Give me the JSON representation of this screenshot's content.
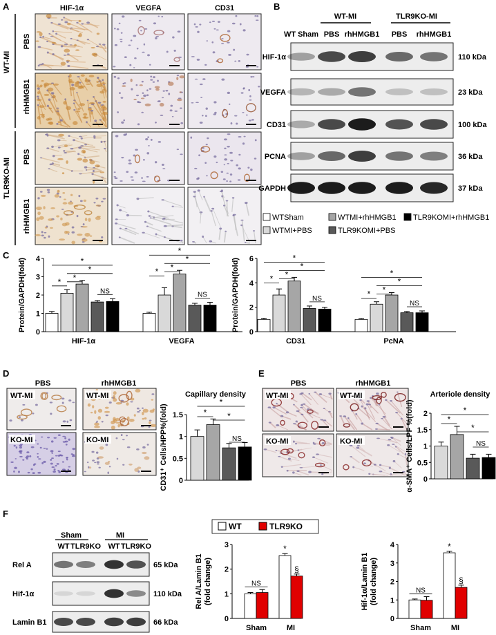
{
  "panels": {
    "A": "A",
    "B": "B",
    "C": "C",
    "D": "D",
    "E": "E",
    "F": "F"
  },
  "colors": {
    "white": "#ffffff",
    "light_gray": "#d9d9d9",
    "mid_gray": "#a6a6a6",
    "dark_gray": "#595959",
    "black": "#000000",
    "red": "#e00000",
    "ihc_bg": "#ece6e6",
    "blot_bg": "#ededed"
  },
  "panelA": {
    "columns": [
      "HIF-1α",
      "VEGFA",
      "CD31"
    ],
    "group_wt": "WT-MI",
    "group_ko": "TLR9KO-MI",
    "rows": [
      "PBS",
      "rhHMGB1",
      "PBS",
      "rhHMGB1"
    ]
  },
  "panelB": {
    "header_wt": "WT-MI",
    "header_ko": "TLR9KO-MI",
    "lanes": [
      "WT Sham",
      "PBS",
      "rhHMGB1",
      "PBS",
      "rhHMGB1"
    ],
    "bands": [
      {
        "name": "HIF-1α",
        "size": "110 kDa"
      },
      {
        "name": "VEGFA",
        "size": "23 kDa"
      },
      {
        "name": "CD31",
        "size": "100 kDa"
      },
      {
        "name": "PCNA",
        "size": "36 kDa"
      },
      {
        "name": "GAPDH",
        "size": "37 kDa"
      }
    ],
    "legend": [
      "WTSham",
      "WTMI+PBS",
      "WTMI+rhHMGB1",
      "TLR9KOMI+PBS",
      "TLR9KOMI+rhHMGB1"
    ]
  },
  "panelD": {
    "title": "Capillary density",
    "col1": "PBS",
    "col2": "rhHMGB1",
    "tl": "WT-MI",
    "tr": "WT-MI",
    "bl": "KO-MI",
    "br": "KO-MI"
  },
  "panelE": {
    "title": "Arteriole density",
    "col1": "PBS",
    "col2": "rhHMGB1",
    "tl": "WT-MI",
    "tr": "WT-MI",
    "bl": "KO-MI",
    "br": "KO-MI"
  },
  "panelF": {
    "sham": "Sham",
    "mi": "MI",
    "lanes": [
      "WT",
      "TLR9KO",
      "WT",
      "TLR9KO"
    ],
    "bands": [
      {
        "name": "Rel A",
        "size": "65 kDa"
      },
      {
        "name": "Hif-1α",
        "size": "110 kDa"
      },
      {
        "name": "Lamin B1",
        "size": "66 kDa"
      }
    ],
    "legend": [
      "WT",
      "TLR9KO"
    ]
  },
  "chart_data": [
    {
      "id": "C1",
      "type": "bar",
      "ylabel": "Protein/GAPDH(fold)",
      "ylim": [
        0,
        4
      ],
      "yticks": [
        "0",
        "1",
        "2",
        "3",
        "4"
      ],
      "categories": [
        "HIF-1α",
        "VEGFA"
      ],
      "series": [
        {
          "name": "WTSham",
          "values": [
            1.0,
            1.0
          ],
          "err": [
            0.1,
            0.06
          ]
        },
        {
          "name": "WTMI+PBS",
          "values": [
            2.1,
            2.0
          ],
          "err": [
            0.2,
            0.4
          ]
        },
        {
          "name": "WTMI+rhHMGB1",
          "values": [
            2.6,
            3.15
          ],
          "err": [
            0.2,
            0.2
          ]
        },
        {
          "name": "TLR9KOMI+PBS",
          "values": [
            1.62,
            1.45
          ],
          "err": [
            0.08,
            0.1
          ]
        },
        {
          "name": "TLR9KOMI+rhHMGB1",
          "values": [
            1.65,
            1.45
          ],
          "err": [
            0.15,
            0.15
          ]
        }
      ],
      "annotations": [
        "*",
        "*",
        "*",
        "*",
        "NS",
        "*",
        "*",
        "*",
        "*",
        "NS"
      ]
    },
    {
      "id": "C2",
      "type": "bar",
      "ylabel": "Protein/GAPDH(fold)",
      "ylim": [
        0,
        6
      ],
      "yticks": [
        "0",
        "2",
        "4",
        "6"
      ],
      "categories": [
        "CD31",
        "PcNA"
      ],
      "series": [
        {
          "name": "WTSham",
          "values": [
            1.0,
            1.0
          ],
          "err": [
            0.1,
            0.08
          ]
        },
        {
          "name": "WTMI+PBS",
          "values": [
            3.0,
            2.25
          ],
          "err": [
            0.5,
            0.2
          ]
        },
        {
          "name": "WTMI+rhHMGB1",
          "values": [
            4.15,
            3.0
          ],
          "err": [
            0.3,
            0.2
          ]
        },
        {
          "name": "TLR9KOMI+PBS",
          "values": [
            1.9,
            1.55
          ],
          "err": [
            0.2,
            0.1
          ]
        },
        {
          "name": "TLR9KOMI+rhHMGB1",
          "values": [
            1.85,
            1.55
          ],
          "err": [
            0.15,
            0.15
          ]
        }
      ],
      "annotations": [
        "*",
        "*",
        "*",
        "*",
        "NS",
        "*",
        "*",
        "*",
        "*",
        "NS"
      ]
    },
    {
      "id": "D",
      "type": "bar",
      "ylabel": "CD31⁺ Cells/HPP%(fold)",
      "ylim": [
        0,
        1.5
      ],
      "yticks": [
        "0",
        "0.5",
        "1",
        "1.5"
      ],
      "values": [
        1.0,
        1.27,
        0.74,
        0.76
      ],
      "err": [
        0.15,
        0.13,
        0.1,
        0.1
      ],
      "annotations": [
        "*",
        "*",
        "*",
        "NS"
      ]
    },
    {
      "id": "E",
      "type": "bar",
      "ylabel": "α-SMA⁺ Cells/LPF %(fold)",
      "ylim": [
        0,
        2
      ],
      "yticks": [
        "0",
        "0.5",
        "1",
        "1.5",
        "2"
      ],
      "values": [
        1.0,
        1.35,
        0.63,
        0.65
      ],
      "err": [
        0.12,
        0.25,
        0.12,
        0.1
      ],
      "annotations": [
        "*",
        "*",
        "*",
        "NS"
      ]
    },
    {
      "id": "F1",
      "type": "bar",
      "ylabel": "Rel A/Lamin B1\n(fold change)",
      "ylim": [
        0,
        3
      ],
      "yticks": [
        "0",
        "1",
        "2",
        "3"
      ],
      "categories": [
        "Sham",
        "MI"
      ],
      "series": [
        {
          "name": "WT",
          "values": [
            1.0,
            2.55
          ],
          "err": [
            0.05,
            0.08
          ]
        },
        {
          "name": "TLR9KO",
          "values": [
            1.05,
            1.72
          ],
          "err": [
            0.12,
            0.08
          ]
        }
      ],
      "annotations": [
        "NS",
        "*",
        "§"
      ]
    },
    {
      "id": "F2",
      "type": "bar",
      "ylabel": "Hif-1α/Lamin B1\n(fold change)",
      "ylim": [
        0,
        4
      ],
      "yticks": [
        "0",
        "1",
        "2",
        "3",
        "4"
      ],
      "categories": [
        "Sham",
        "MI"
      ],
      "series": [
        {
          "name": "WT",
          "values": [
            1.0,
            3.55
          ],
          "err": [
            0.05,
            0.08
          ]
        },
        {
          "name": "TLR9KO",
          "values": [
            0.98,
            1.68
          ],
          "err": [
            0.2,
            0.12
          ]
        }
      ],
      "annotations": [
        "NS",
        "*",
        "§"
      ]
    }
  ]
}
